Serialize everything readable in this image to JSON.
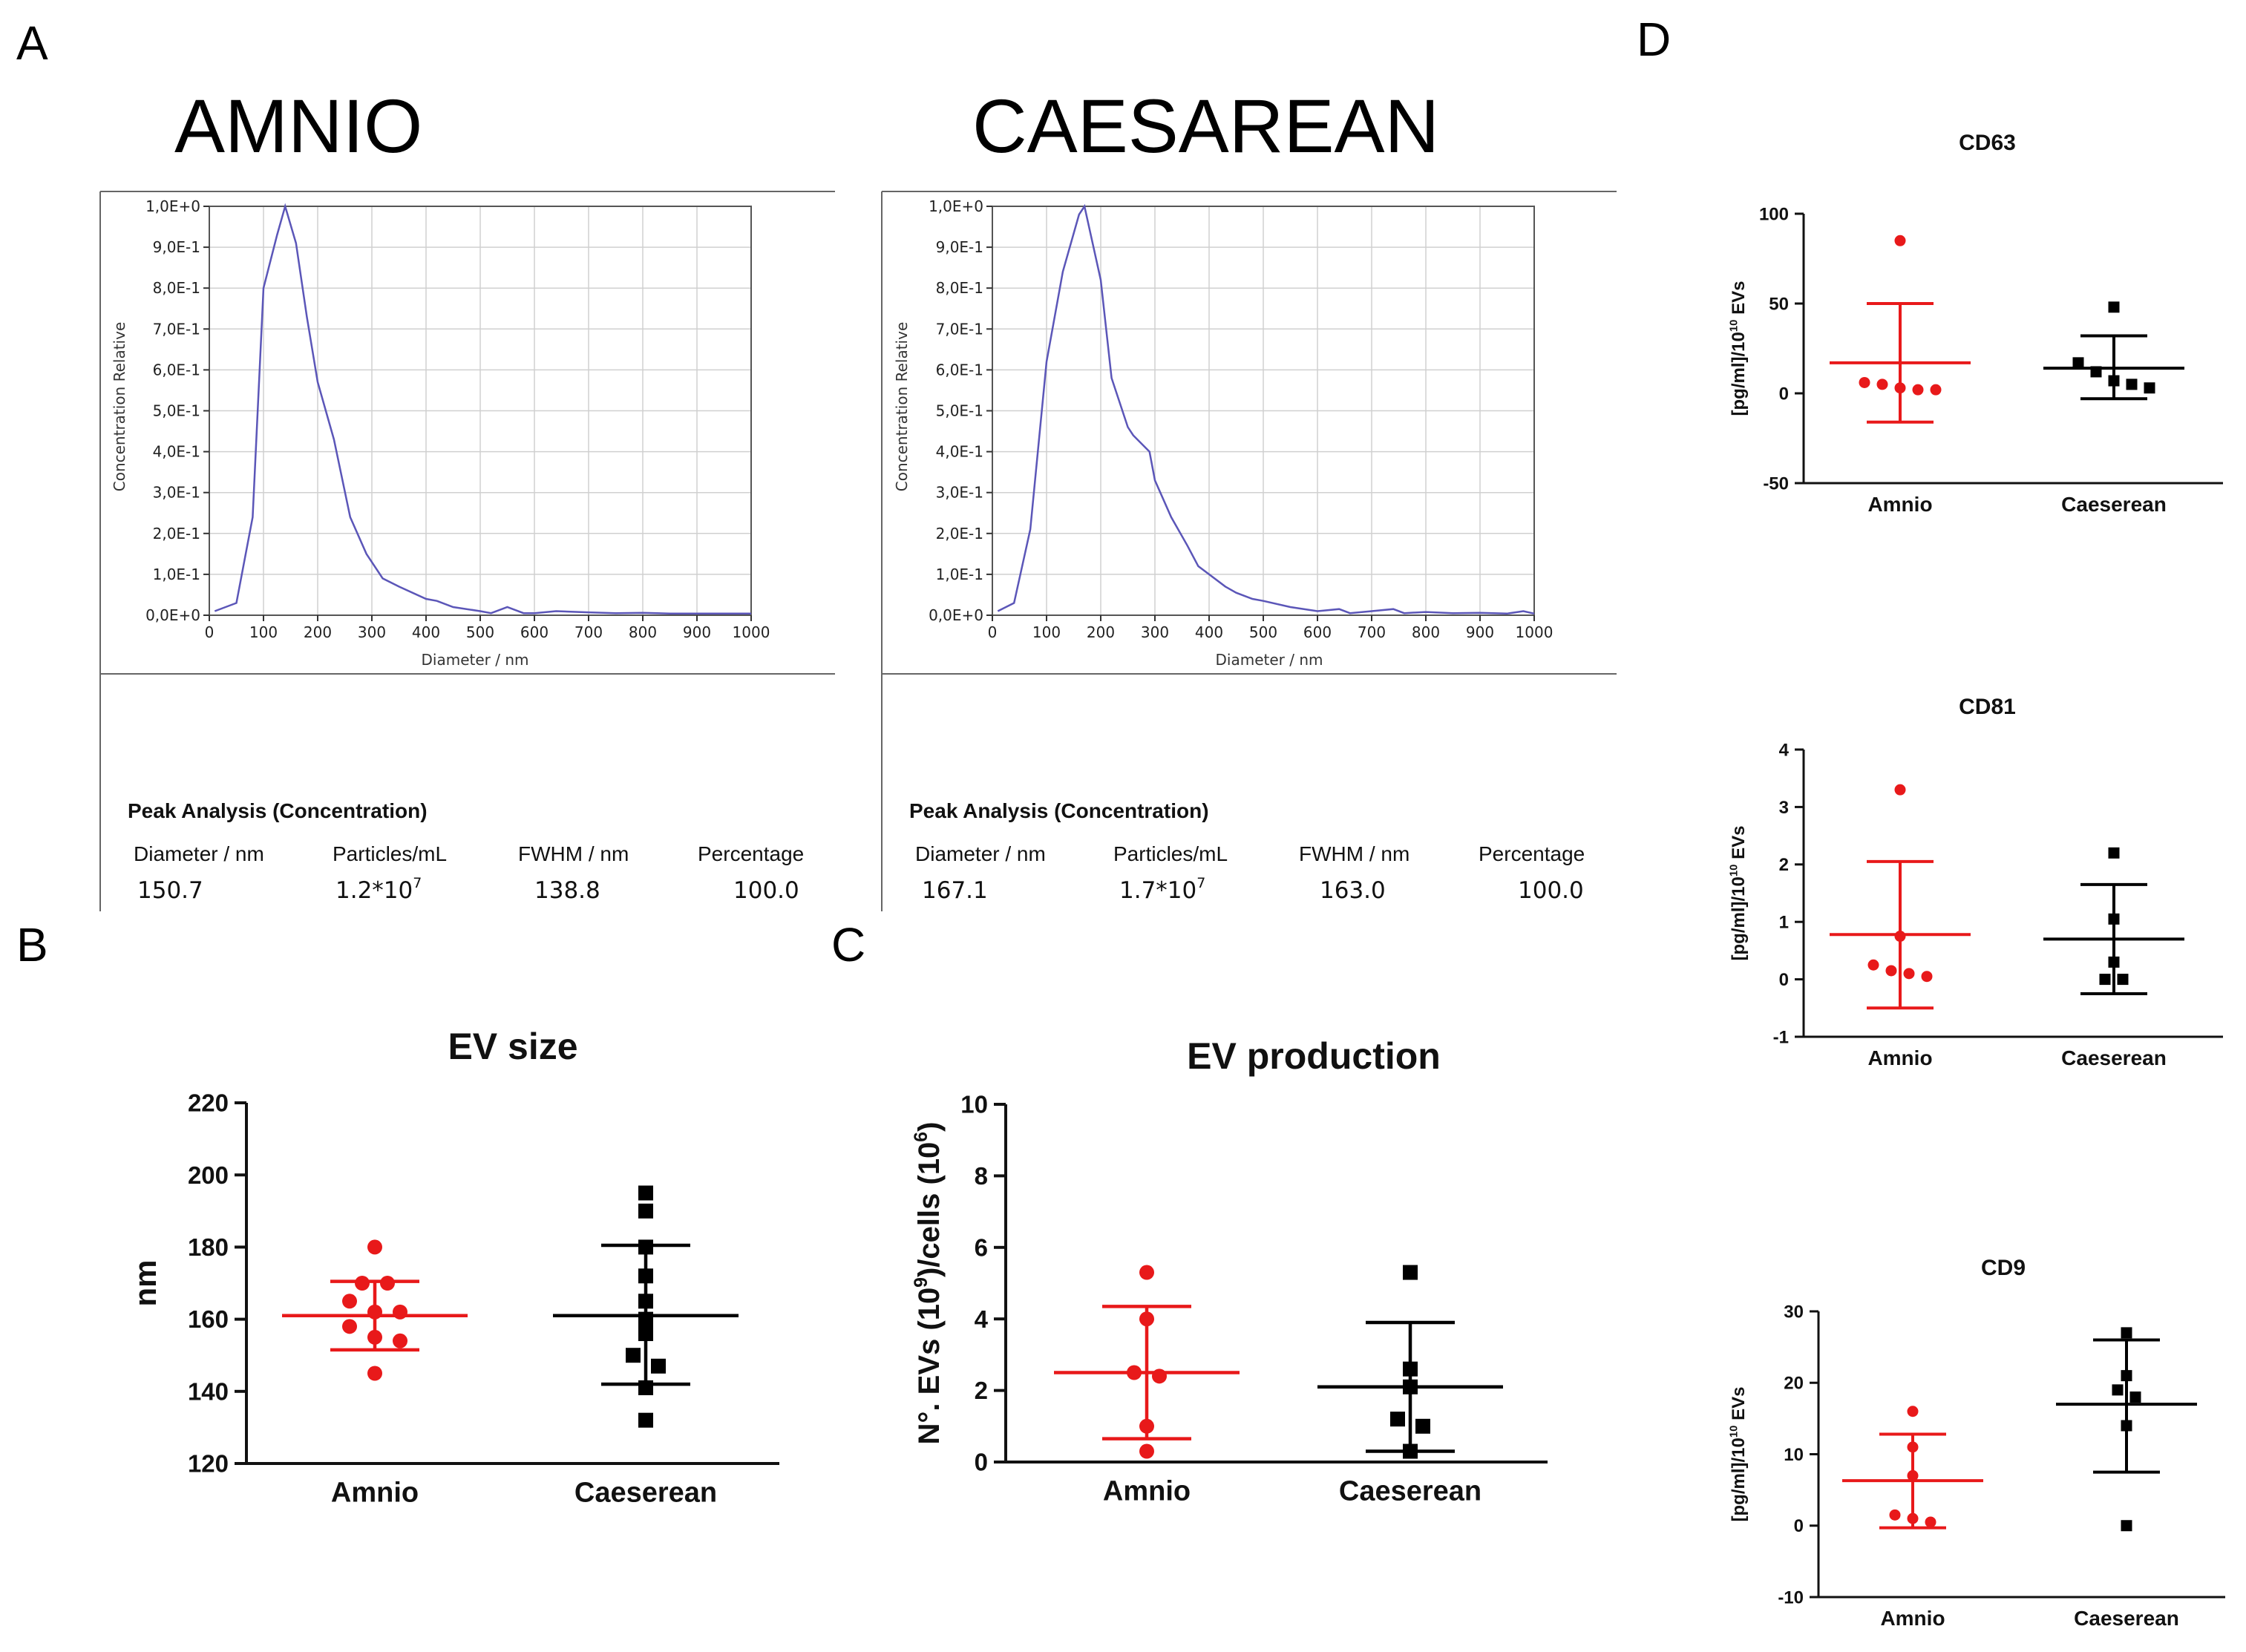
{
  "panel_labels": [
    "A",
    "B",
    "C",
    "D"
  ],
  "nta": [
    {
      "sample_title": "AMNIO",
      "ylabel": "Concentration Relative",
      "xlabel": "Diameter / nm",
      "yticks": [
        "0,0E+0",
        "1,0E-1",
        "2,0E-1",
        "3,0E-1",
        "4,0E-1",
        "5,0E-1",
        "6,0E-1",
        "7,0E-1",
        "8,0E-1",
        "9,0E-1",
        "1,0E+0"
      ],
      "xticks": [
        "0",
        "100",
        "200",
        "300",
        "400",
        "500",
        "600",
        "700",
        "800",
        "900",
        "1000"
      ],
      "peak_title": "Peak Analysis (Concentration)",
      "headers": [
        "Diameter / nm",
        "Particles/mL",
        "FWHM / nm",
        "Percentage"
      ],
      "values": {
        "diameter": "150.7",
        "particles_base": "1.2*10",
        "particles_exp": "7",
        "fwhm": "138.8",
        "percentage": "100.0"
      }
    },
    {
      "sample_title": "CAESAREAN",
      "ylabel": "Concentration Relative",
      "xlabel": "Diameter / nm",
      "yticks": [
        "0,0E+0",
        "1,0E-1",
        "2,0E-1",
        "3,0E-1",
        "4,0E-1",
        "5,0E-1",
        "6,0E-1",
        "7,0E-1",
        "8,0E-1",
        "9,0E-1",
        "1,0E+0"
      ],
      "xticks": [
        "0",
        "100",
        "200",
        "300",
        "400",
        "500",
        "600",
        "700",
        "800",
        "900",
        "1000"
      ],
      "peak_title": "Peak Analysis (Concentration)",
      "headers": [
        "Diameter / nm",
        "Particles/mL",
        "FWHM / nm",
        "Percentage"
      ],
      "values": {
        "diameter": "167.1",
        "particles_base": "1.7*10",
        "particles_exp": "7",
        "fwhm": "163.0",
        "percentage": "100.0"
      }
    }
  ],
  "colors": {
    "amnio": "#e8191a",
    "caeserean": "#000000",
    "nta_line": "#5b56b8",
    "grid": "#d0d0d0"
  },
  "chart_data": [
    {
      "id": "nta-amnio",
      "type": "line",
      "title": "AMNIO",
      "xlabel": "Diameter / nm",
      "ylabel": "Concentration Relative",
      "xlim": [
        0,
        1000
      ],
      "ylim": [
        0,
        1
      ],
      "x": [
        10,
        50,
        80,
        100,
        125,
        140,
        160,
        180,
        200,
        230,
        260,
        290,
        320,
        350,
        400,
        420,
        450,
        500,
        520,
        550,
        580,
        600,
        640,
        700,
        750,
        800,
        850,
        900,
        950,
        1000
      ],
      "y": [
        0.01,
        0.03,
        0.24,
        0.8,
        0.93,
        1.0,
        0.91,
        0.73,
        0.57,
        0.43,
        0.24,
        0.15,
        0.09,
        0.07,
        0.04,
        0.035,
        0.02,
        0.01,
        0.005,
        0.02,
        0.005,
        0.005,
        0.01,
        0.007,
        0.005,
        0.006,
        0.004,
        0.004,
        0.004,
        0.004
      ]
    },
    {
      "id": "nta-caesarean",
      "type": "line",
      "title": "CAESAREAN",
      "xlabel": "Diameter / nm",
      "ylabel": "Concentration Relative",
      "xlim": [
        0,
        1000
      ],
      "ylim": [
        0,
        1
      ],
      "x": [
        10,
        40,
        70,
        100,
        130,
        160,
        170,
        200,
        220,
        250,
        260,
        290,
        300,
        330,
        360,
        380,
        400,
        430,
        450,
        480,
        500,
        550,
        600,
        640,
        660,
        700,
        740,
        760,
        800,
        850,
        900,
        950,
        980,
        1000
      ],
      "y": [
        0.01,
        0.03,
        0.21,
        0.62,
        0.84,
        0.98,
        1.0,
        0.82,
        0.58,
        0.46,
        0.44,
        0.4,
        0.33,
        0.24,
        0.17,
        0.12,
        0.1,
        0.07,
        0.055,
        0.04,
        0.035,
        0.02,
        0.01,
        0.015,
        0.005,
        0.01,
        0.015,
        0.005,
        0.008,
        0.005,
        0.006,
        0.004,
        0.01,
        0.004
      ]
    },
    {
      "id": "ev-size",
      "type": "scatter",
      "title": "EV size",
      "xlabel": "",
      "ylabel": "nm",
      "ylim": [
        120,
        220
      ],
      "yticks": [
        120,
        140,
        160,
        180,
        200,
        220
      ],
      "categories": [
        "Amnio",
        "Caeserean"
      ],
      "series": [
        {
          "name": "Amnio",
          "marker": "circle",
          "values": [
            180,
            170,
            170,
            165,
            162,
            162,
            158,
            155,
            154,
            145
          ],
          "mean": 161,
          "sd_low": 151.5,
          "sd_high": 170.5
        },
        {
          "name": "Caeserean",
          "marker": "square",
          "values": [
            195,
            190,
            180,
            172,
            165,
            160,
            156,
            150,
            147,
            141,
            132
          ],
          "mean": 161,
          "sd_low": 142,
          "sd_high": 180.5
        }
      ]
    },
    {
      "id": "ev-production",
      "type": "scatter",
      "title": "EV production",
      "xlabel": "",
      "ylabel_base": "N°. EVs (10",
      "ylabel_exp1": "9",
      "ylabel_mid": ")/cells (10",
      "ylabel_exp2": "6",
      "ylabel_end": ")",
      "ylim": [
        0,
        10
      ],
      "yticks": [
        0,
        2,
        4,
        6,
        8,
        10
      ],
      "categories": [
        "Amnio",
        "Caeserean"
      ],
      "series": [
        {
          "name": "Amnio",
          "marker": "circle",
          "values": [
            5.3,
            4.0,
            2.5,
            2.4,
            1.0,
            0.3
          ],
          "mean": 2.5,
          "sd_low": 0.65,
          "sd_high": 4.35
        },
        {
          "name": "Caeserean",
          "marker": "square",
          "values": [
            5.3,
            2.6,
            2.1,
            1.2,
            1.0,
            0.3
          ],
          "mean": 2.1,
          "sd_low": 0.3,
          "sd_high": 3.9
        }
      ]
    },
    {
      "id": "cd63",
      "type": "scatter",
      "title": "CD63",
      "xlabel": "",
      "ylabel_base": "[pg/ml]/10",
      "ylabel_exp": "10",
      "ylabel_end": " EVs",
      "ylim": [
        -50,
        100
      ],
      "yticks": [
        -50,
        0,
        50,
        100
      ],
      "categories": [
        "Amnio",
        "Caeserean"
      ],
      "series": [
        {
          "name": "Amnio",
          "marker": "circle",
          "values": [
            85,
            6,
            5,
            3,
            2,
            2
          ],
          "mean": 17,
          "sd_low": -16,
          "sd_high": 50
        },
        {
          "name": "Caeserean",
          "marker": "square",
          "values": [
            48,
            17,
            12,
            7,
            5,
            3
          ],
          "mean": 14,
          "sd_low": -3,
          "sd_high": 32
        }
      ]
    },
    {
      "id": "cd81",
      "type": "scatter",
      "title": "CD81",
      "xlabel": "",
      "ylabel_base": "[pg/ml]/10",
      "ylabel_exp": "10",
      "ylabel_end": " EVs",
      "ylim": [
        -1,
        4
      ],
      "yticks": [
        -1,
        0,
        1,
        2,
        3,
        4
      ],
      "categories": [
        "Amnio",
        "Caeserean"
      ],
      "series": [
        {
          "name": "Amnio",
          "marker": "circle",
          "values": [
            3.3,
            0.75,
            0.25,
            0.15,
            0.1,
            0.05
          ],
          "mean": 0.78,
          "sd_low": -0.5,
          "sd_high": 2.05
        },
        {
          "name": "Caeserean",
          "marker": "square",
          "values": [
            2.2,
            1.05,
            0.3,
            0.0,
            0.0
          ],
          "mean": 0.7,
          "sd_low": -0.25,
          "sd_high": 1.65
        }
      ]
    },
    {
      "id": "cd9",
      "type": "scatter",
      "title": "CD9",
      "xlabel": "",
      "ylabel_base": "[pg/ml]/10",
      "ylabel_exp": "10",
      "ylabel_end": " EVs",
      "ylim": [
        -10,
        30
      ],
      "yticks": [
        -10,
        0,
        10,
        20,
        30
      ],
      "categories": [
        "Amnio",
        "Caeserean"
      ],
      "series": [
        {
          "name": "Amnio",
          "marker": "circle",
          "values": [
            16,
            11,
            7,
            1.5,
            1,
            0.5
          ],
          "mean": 6.3,
          "sd_low": -0.3,
          "sd_high": 12.8
        },
        {
          "name": "Caeserean",
          "marker": "square",
          "values": [
            27,
            21,
            19,
            18,
            14,
            0
          ],
          "mean": 17,
          "sd_low": 7.5,
          "sd_high": 26
        }
      ]
    }
  ]
}
